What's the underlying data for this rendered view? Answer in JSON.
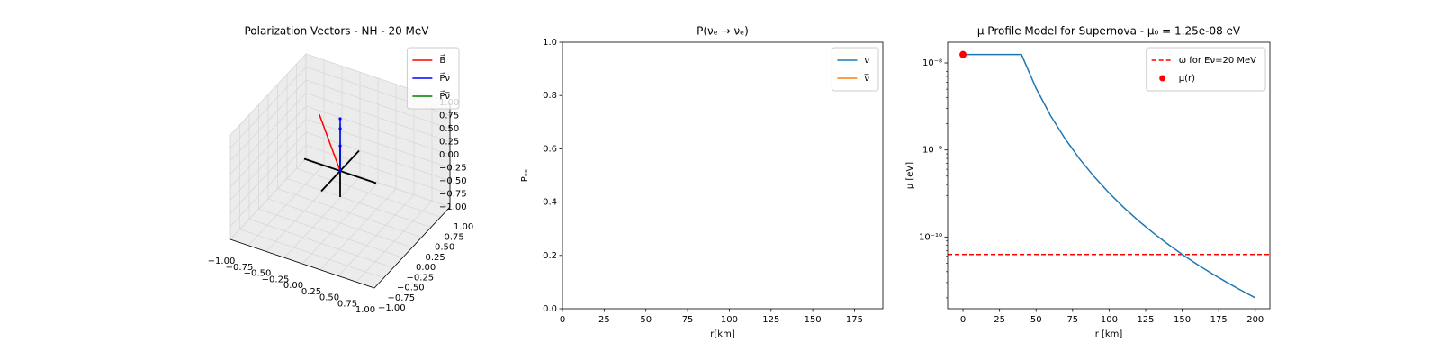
{
  "chart_data": [
    {
      "type": "line3d",
      "title": "Polarization Vectors - NH - 20 MeV",
      "legend": "upper right",
      "xlim": [
        -1,
        1
      ],
      "ylim": [
        -1,
        1
      ],
      "zlim": [
        -1,
        1
      ],
      "xticks": [
        {
          "value": -1,
          "label": "−1.00"
        },
        {
          "value": -0.75,
          "label": "−0.75"
        },
        {
          "value": -0.5,
          "label": "−0.50"
        },
        {
          "value": -0.25,
          "label": "−0.25"
        },
        {
          "value": 0,
          "label": "0.00"
        },
        {
          "value": 0.25,
          "label": "0.25"
        },
        {
          "value": 0.5,
          "label": "0.50"
        },
        {
          "value": 0.75,
          "label": "0.75"
        },
        {
          "value": 1,
          "label": "1.00"
        }
      ],
      "yticks": [
        {
          "value": -1,
          "label": "−1.00"
        },
        {
          "value": -0.75,
          "label": "−0.75"
        },
        {
          "value": -0.5,
          "label": "−0.50"
        },
        {
          "value": -0.25,
          "label": "−0.25"
        },
        {
          "value": 0,
          "label": "0.00"
        },
        {
          "value": 0.25,
          "label": "0.25"
        },
        {
          "value": 0.5,
          "label": "0.50"
        },
        {
          "value": 0.75,
          "label": "0.75"
        },
        {
          "value": 1,
          "label": "1.00"
        }
      ],
      "zticks": [
        {
          "value": -1,
          "label": "−1.00"
        },
        {
          "value": -0.75,
          "label": "−0.75"
        },
        {
          "value": -0.5,
          "label": "−0.50"
        },
        {
          "value": -0.25,
          "label": "−0.25"
        },
        {
          "value": 0,
          "label": "0.00"
        },
        {
          "value": 0.25,
          "label": "0.25"
        },
        {
          "value": 0.5,
          "label": "0.50"
        },
        {
          "value": 0.75,
          "label": "0.75"
        },
        {
          "value": 1,
          "label": "1.00"
        }
      ],
      "series": [
        {
          "name": "B⃗",
          "color": "#ff0000",
          "x": [
            0,
            -0.29
          ],
          "y": [
            0,
            0
          ],
          "z": [
            0,
            0.95
          ]
        },
        {
          "name": "P⃗ν",
          "color": "#0000ff",
          "marker": ".",
          "x": [
            0,
            0,
            0,
            0
          ],
          "y": [
            0,
            0,
            0,
            0
          ],
          "z": [
            0,
            0.48,
            0.81,
            1.0
          ]
        },
        {
          "name": "P⃗ν̅",
          "color": "#008000",
          "x": [
            0,
            0
          ],
          "y": [
            0,
            0
          ],
          "z": [
            0,
            0.9
          ]
        }
      ]
    },
    {
      "type": "line",
      "title": "P(νₑ → νₑ)",
      "xlabel": "r[km]",
      "ylabel": "Pₑₑ",
      "legend": "upper right",
      "xlim": [
        0,
        192
      ],
      "ylim": [
        0,
        1
      ],
      "xticks": [
        0,
        25,
        50,
        75,
        100,
        125,
        150,
        175
      ],
      "yticks": [
        {
          "value": 0,
          "label": "0.0"
        },
        0.2,
        0.4,
        0.6,
        0.8,
        {
          "value": 1,
          "label": "1.0"
        }
      ],
      "series": [
        {
          "name": "ν",
          "color": "#1f77b4",
          "x": [],
          "values": []
        },
        {
          "name": "ν̅",
          "color": "#ff7f0e",
          "x": [],
          "values": []
        }
      ]
    },
    {
      "type": "line",
      "title": "μ Profile Model for Supernova - μ₀ = 1.25e-08 eV",
      "xlabel": "r [km]",
      "ylabel": "μ [eV]",
      "legend": "upper right",
      "yscale": "log",
      "xlim": [
        -10.5,
        210
      ],
      "ylim": [
        1.5e-11,
        1.73e-08
      ],
      "xticks": [
        0,
        25,
        50,
        75,
        100,
        125,
        150,
        175,
        200
      ],
      "yticks": [
        {
          "value": 1e-10,
          "label": "10⁻¹⁰"
        },
        {
          "value": 1e-09,
          "label": "10⁻⁹"
        },
        {
          "value": 1e-08,
          "label": "10⁻⁸"
        }
      ],
      "hlines": [
        {
          "name": "ω for Eν=20 MeV",
          "color": "#ff0000",
          "linestyle": "dashed",
          "value": 6.3e-11
        }
      ],
      "series": [
        {
          "color": "#1f77b4",
          "x": [
            0,
            10,
            20,
            30,
            40,
            50,
            60,
            70,
            80,
            90,
            100,
            110,
            120,
            130,
            140,
            150,
            160,
            170,
            180,
            190,
            200
          ],
          "values": [
            1.25e-08,
            1.25e-08,
            1.25e-08,
            1.25e-08,
            1.25e-08,
            5.12e-09,
            2.469e-09,
            1.333e-09,
            7.81e-10,
            4.88e-10,
            3.2e-10,
            2.185e-10,
            1.543e-10,
            1.12e-10,
            8.33e-11,
            6.32e-11,
            4.88e-11,
            3.83e-11,
            3.05e-11,
            2.46e-11,
            2e-11
          ]
        },
        {
          "name": "μ(r)",
          "color": "#ff0000",
          "marker": "o",
          "linestyle": "none",
          "x": [
            0
          ],
          "values": [
            1.25e-08
          ]
        }
      ]
    }
  ]
}
